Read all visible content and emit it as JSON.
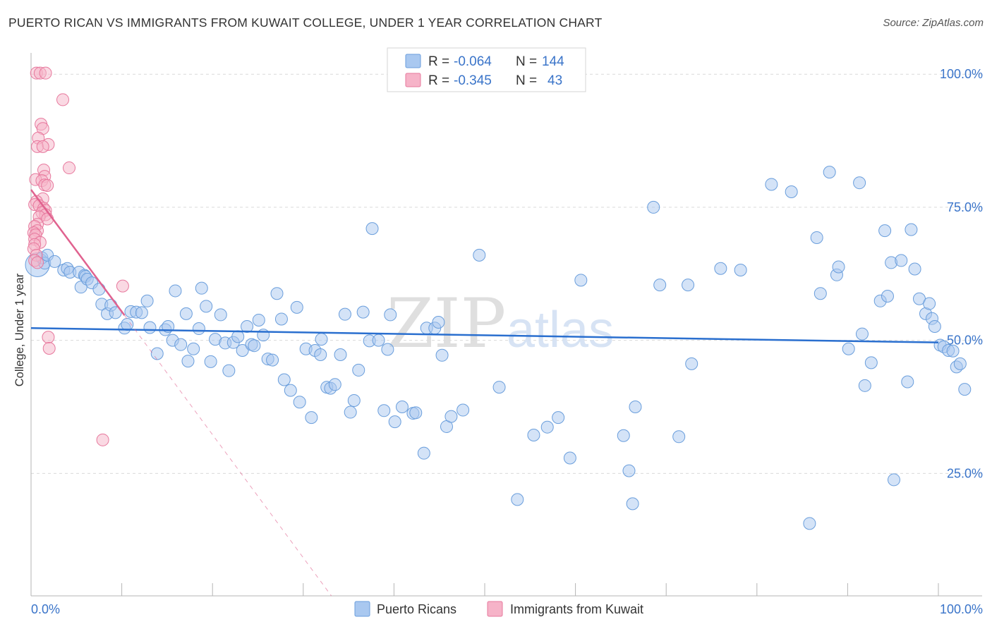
{
  "title": "PUERTO RICAN VS IMMIGRANTS FROM KUWAIT COLLEGE, UNDER 1 YEAR CORRELATION CHART",
  "source": "Source: ZipAtlas.com",
  "watermark": {
    "zip": "ZIP",
    "atlas": "atlas"
  },
  "colors": {
    "blue_fill": "#a9c8f0",
    "blue_stroke": "#6a9edc",
    "blue_line": "#2a6fcf",
    "pink_fill": "#f6b3c8",
    "pink_stroke": "#e7789d",
    "pink_line": "#e0628f",
    "axis_text": "#3a74c9",
    "grid": "#d9d9d9"
  },
  "legend_box": {
    "rows": [
      {
        "r_label": "R = ",
        "r_value": "-0.064",
        "n_label": "N = ",
        "n_value": "144",
        "series": "blue"
      },
      {
        "r_label": "R = ",
        "r_value": "-0.345",
        "n_label": "N = ",
        "n_value": "43",
        "series": "pink"
      }
    ]
  },
  "chart_data": {
    "type": "scatter",
    "xlabel": "",
    "ylabel": "College, Under 1 year",
    "xlim": [
      0,
      100
    ],
    "ylim": [
      2,
      104
    ],
    "x_tick_labels": [
      {
        "value": 0,
        "label": "0.0%"
      },
      {
        "value": 100,
        "label": "100.0%"
      }
    ],
    "y_tick_labels": [
      {
        "value": 100,
        "label": "100.0%"
      },
      {
        "value": 75,
        "label": "75.0%"
      },
      {
        "value": 50,
        "label": "50.0%"
      },
      {
        "value": 25,
        "label": "25.0%"
      }
    ],
    "legend": [
      "Puerto Ricans",
      "Immigrants from Kuwait"
    ],
    "series": [
      {
        "name": "Puerto Ricans",
        "color": "blue",
        "trend": {
          "x": [
            0,
            100
          ],
          "y": [
            52.3,
            49.6
          ]
        },
        "points": [
          [
            0.7,
            64.2
          ],
          [
            1.2,
            65.5
          ],
          [
            1.5,
            64.5
          ],
          [
            1.8,
            66.0
          ],
          [
            2.6,
            64.8
          ],
          [
            3.6,
            63.2
          ],
          [
            4.0,
            63.5
          ],
          [
            4.3,
            62.8
          ],
          [
            5.3,
            62.8
          ],
          [
            5.9,
            62.2
          ],
          [
            5.5,
            60.0
          ],
          [
            6.0,
            62.0
          ],
          [
            6.2,
            61.5
          ],
          [
            6.7,
            60.8
          ],
          [
            7.5,
            59.6
          ],
          [
            7.8,
            56.8
          ],
          [
            8.4,
            55.0
          ],
          [
            8.8,
            56.6
          ],
          [
            9.3,
            55.2
          ],
          [
            10.3,
            52.3
          ],
          [
            10.6,
            53.0
          ],
          [
            11.0,
            55.4
          ],
          [
            11.6,
            55.3
          ],
          [
            12.2,
            55.2
          ],
          [
            12.8,
            57.4
          ],
          [
            13.1,
            52.4
          ],
          [
            13.9,
            47.5
          ],
          [
            14.8,
            52.0
          ],
          [
            15.1,
            52.6
          ],
          [
            15.6,
            50.0
          ],
          [
            15.9,
            59.3
          ],
          [
            16.5,
            49.2
          ],
          [
            17.1,
            55.0
          ],
          [
            17.3,
            46.1
          ],
          [
            17.9,
            48.4
          ],
          [
            18.5,
            52.2
          ],
          [
            18.8,
            59.8
          ],
          [
            19.3,
            56.4
          ],
          [
            19.8,
            46.0
          ],
          [
            20.3,
            50.2
          ],
          [
            20.9,
            54.8
          ],
          [
            21.4,
            49.5
          ],
          [
            21.8,
            44.3
          ],
          [
            22.3,
            49.6
          ],
          [
            22.8,
            50.7
          ],
          [
            23.3,
            48.1
          ],
          [
            23.8,
            52.6
          ],
          [
            24.3,
            49.2
          ],
          [
            24.6,
            49.0
          ],
          [
            25.1,
            53.8
          ],
          [
            25.6,
            51.0
          ],
          [
            26.1,
            46.5
          ],
          [
            26.6,
            46.3
          ],
          [
            27.1,
            58.8
          ],
          [
            27.6,
            54.0
          ],
          [
            27.9,
            42.6
          ],
          [
            28.6,
            40.6
          ],
          [
            29.3,
            56.2
          ],
          [
            29.6,
            38.4
          ],
          [
            30.3,
            48.4
          ],
          [
            30.9,
            35.5
          ],
          [
            31.3,
            48.1
          ],
          [
            32.0,
            50.2
          ],
          [
            31.9,
            47.3
          ],
          [
            32.6,
            41.2
          ],
          [
            33.0,
            41.0
          ],
          [
            33.5,
            41.7
          ],
          [
            34.1,
            47.3
          ],
          [
            34.6,
            54.9
          ],
          [
            35.2,
            36.5
          ],
          [
            35.6,
            38.7
          ],
          [
            36.1,
            44.4
          ],
          [
            36.6,
            55.3
          ],
          [
            37.3,
            49.9
          ],
          [
            37.6,
            71.0
          ],
          [
            38.3,
            50.0
          ],
          [
            38.9,
            36.8
          ],
          [
            39.3,
            48.3
          ],
          [
            39.6,
            54.8
          ],
          [
            40.1,
            34.7
          ],
          [
            40.9,
            37.5
          ],
          [
            42.1,
            36.3
          ],
          [
            42.4,
            36.4
          ],
          [
            43.3,
            28.8
          ],
          [
            43.6,
            52.3
          ],
          [
            44.5,
            52.3
          ],
          [
            44.9,
            53.4
          ],
          [
            45.3,
            47.2
          ],
          [
            45.8,
            33.8
          ],
          [
            46.3,
            35.7
          ],
          [
            47.6,
            36.9
          ],
          [
            49.4,
            66.0
          ],
          [
            51.6,
            41.2
          ],
          [
            53.6,
            20.1
          ],
          [
            55.4,
            32.2
          ],
          [
            56.9,
            33.7
          ],
          [
            58.1,
            35.5
          ],
          [
            59.4,
            27.9
          ],
          [
            60.6,
            61.3
          ],
          [
            65.3,
            32.1
          ],
          [
            65.9,
            25.5
          ],
          [
            66.3,
            19.3
          ],
          [
            66.6,
            37.5
          ],
          [
            68.6,
            75.0
          ],
          [
            69.3,
            60.4
          ],
          [
            71.4,
            31.9
          ],
          [
            72.4,
            60.4
          ],
          [
            72.8,
            45.6
          ],
          [
            76.0,
            63.5
          ],
          [
            78.2,
            63.2
          ],
          [
            81.6,
            79.3
          ],
          [
            83.8,
            77.9
          ],
          [
            85.8,
            15.6
          ],
          [
            86.6,
            69.3
          ],
          [
            87.0,
            58.8
          ],
          [
            88.0,
            81.6
          ],
          [
            88.8,
            62.3
          ],
          [
            89.0,
            63.8
          ],
          [
            90.1,
            48.4
          ],
          [
            91.3,
            79.6
          ],
          [
            91.6,
            51.2
          ],
          [
            91.9,
            41.5
          ],
          [
            92.6,
            45.8
          ],
          [
            93.6,
            57.4
          ],
          [
            94.1,
            70.6
          ],
          [
            94.4,
            58.3
          ],
          [
            94.8,
            64.6
          ],
          [
            95.1,
            23.8
          ],
          [
            95.9,
            65.0
          ],
          [
            96.6,
            42.2
          ],
          [
            97.0,
            70.8
          ],
          [
            97.4,
            63.4
          ],
          [
            97.9,
            57.8
          ],
          [
            98.6,
            55.0
          ],
          [
            99.0,
            56.9
          ],
          [
            99.3,
            54.1
          ],
          [
            99.6,
            52.6
          ],
          [
            100.2,
            49.1
          ],
          [
            100.6,
            48.8
          ],
          [
            101.1,
            48.1
          ],
          [
            101.6,
            48.0
          ],
          [
            102.0,
            45.0
          ],
          [
            102.4,
            45.6
          ],
          [
            102.9,
            40.8
          ]
        ]
      },
      {
        "name": "Immigrants from Kuwait",
        "color": "pink",
        "trend": {
          "x": [
            0,
            10.3
          ],
          "y": [
            78.3,
            54.7
          ]
        },
        "trend_extension": {
          "x": [
            10.3,
            33.1
          ],
          "y": [
            54.7,
            2.0
          ]
        },
        "points": [
          [
            0.6,
            100.2
          ],
          [
            1.0,
            100.2
          ],
          [
            1.6,
            100.2
          ],
          [
            3.5,
            95.2
          ],
          [
            1.1,
            90.6
          ],
          [
            1.3,
            89.8
          ],
          [
            0.8,
            88.0
          ],
          [
            0.7,
            86.4
          ],
          [
            1.9,
            86.8
          ],
          [
            1.3,
            86.4
          ],
          [
            4.2,
            82.4
          ],
          [
            1.4,
            82.0
          ],
          [
            1.5,
            80.8
          ],
          [
            0.5,
            80.2
          ],
          [
            1.2,
            80.0
          ],
          [
            1.5,
            79.2
          ],
          [
            1.8,
            79.1
          ],
          [
            1.3,
            76.6
          ],
          [
            0.6,
            76.1
          ],
          [
            0.4,
            75.5
          ],
          [
            0.9,
            75.3
          ],
          [
            1.4,
            74.8
          ],
          [
            1.6,
            74.4
          ],
          [
            1.2,
            74.0
          ],
          [
            1.6,
            73.6
          ],
          [
            0.9,
            73.2
          ],
          [
            1.8,
            72.8
          ],
          [
            0.7,
            71.8
          ],
          [
            0.4,
            71.4
          ],
          [
            0.7,
            70.6
          ],
          [
            0.3,
            70.2
          ],
          [
            0.5,
            69.8
          ],
          [
            0.4,
            69.0
          ],
          [
            1.0,
            68.4
          ],
          [
            0.4,
            68.0
          ],
          [
            0.3,
            67.2
          ],
          [
            0.6,
            66.0
          ],
          [
            0.4,
            65.0
          ],
          [
            0.7,
            64.6
          ],
          [
            10.1,
            60.2
          ],
          [
            1.9,
            50.6
          ],
          [
            2.0,
            48.5
          ],
          [
            7.9,
            31.3
          ]
        ]
      }
    ]
  }
}
